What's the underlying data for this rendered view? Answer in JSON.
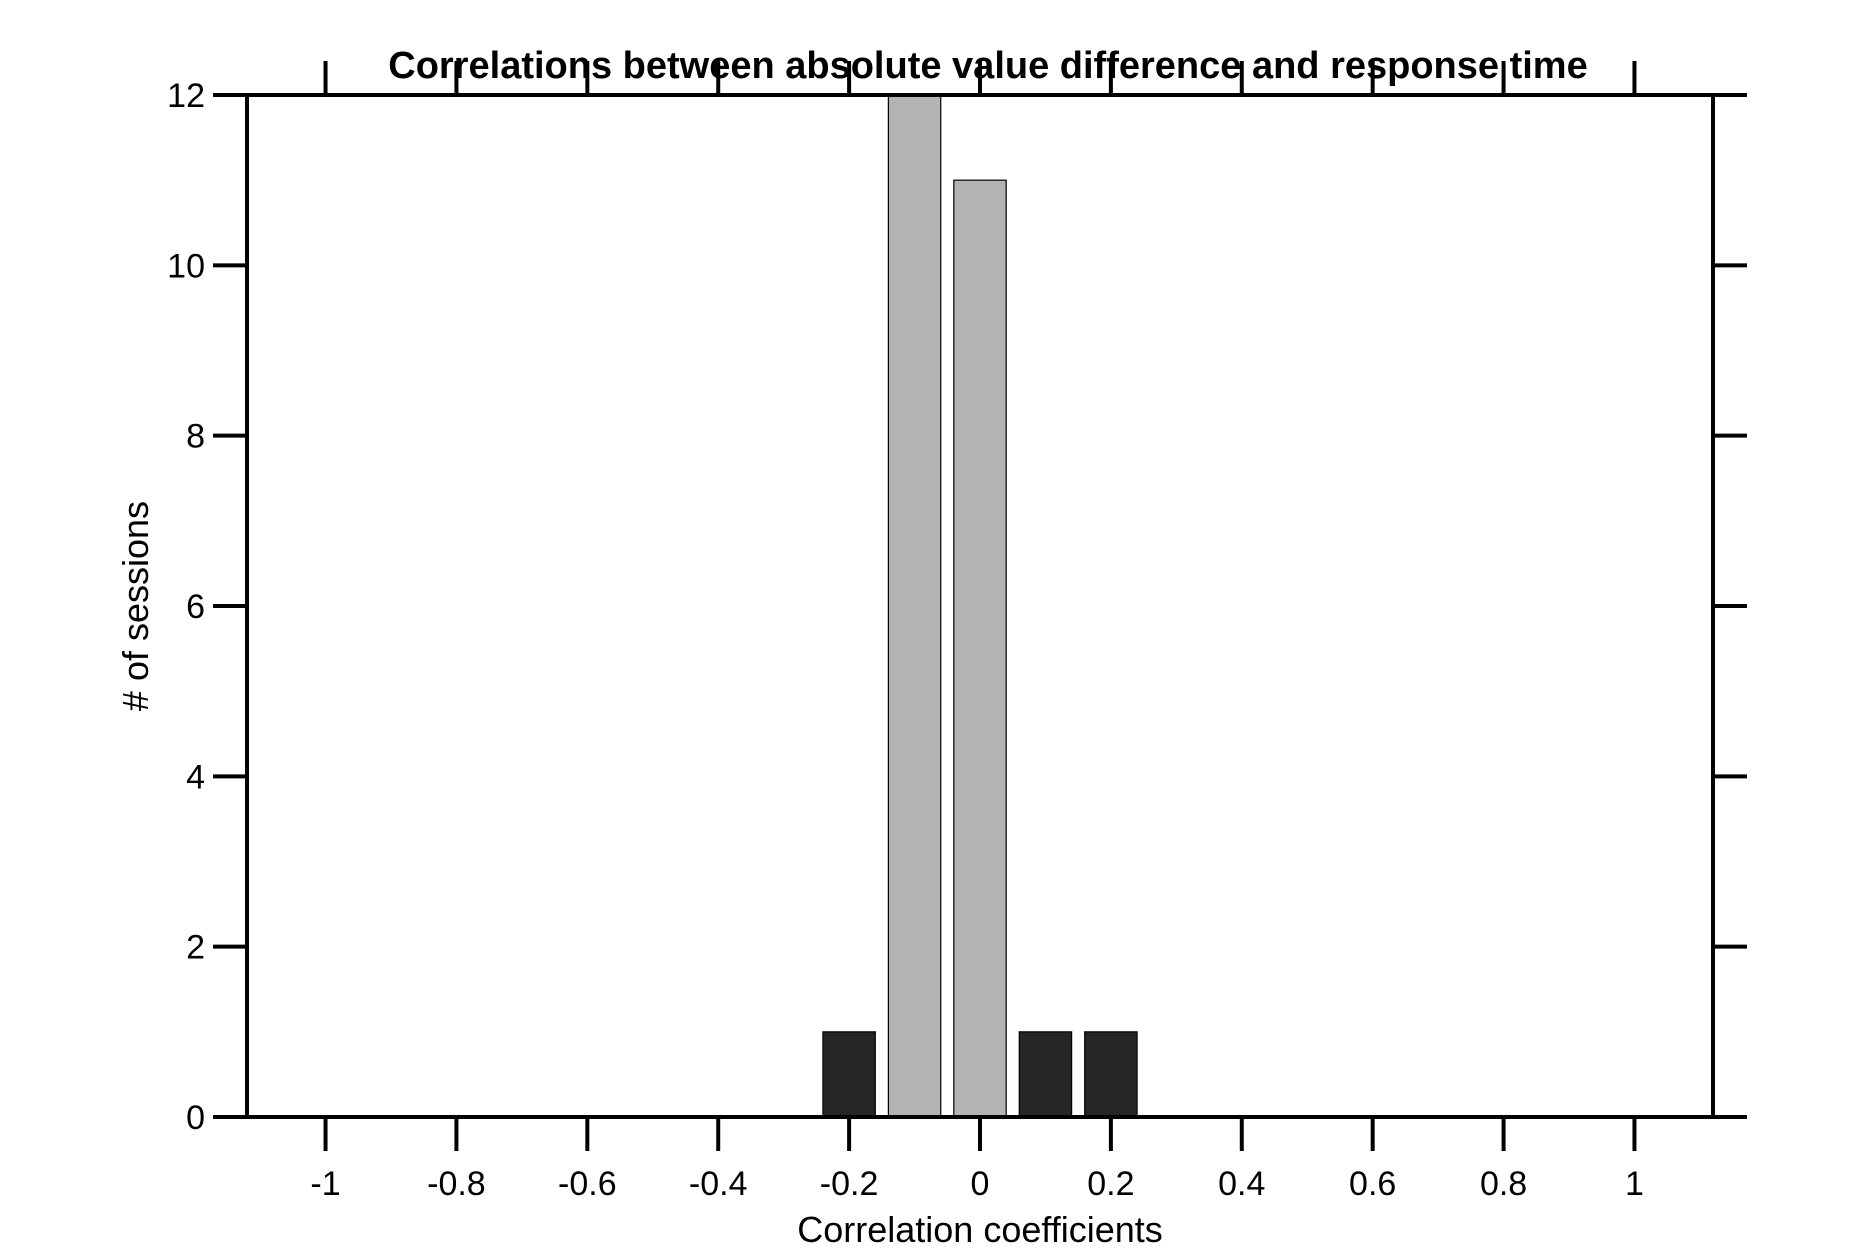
{
  "chart_data": {
    "type": "bar",
    "title": "Correlations between absolute value difference and response time",
    "xlabel": "Correlation coefficients",
    "ylabel": "# of sessions",
    "xlim": [
      -1.12,
      1.12
    ],
    "ylim": [
      0,
      12
    ],
    "x_ticks": [
      -1,
      -0.8,
      -0.6,
      -0.4,
      -0.2,
      0,
      0.2,
      0.4,
      0.6,
      0.8,
      1
    ],
    "x_tick_labels": [
      "-1",
      "-0.8",
      "-0.6",
      "-0.4",
      "-0.2",
      "0",
      "0.2",
      "0.4",
      "0.6",
      "0.8",
      "1"
    ],
    "y_ticks": [
      0,
      2,
      4,
      6,
      8,
      10,
      12
    ],
    "y_tick_labels": [
      "0",
      "2",
      "4",
      "6",
      "8",
      "10",
      "12"
    ],
    "grid": false,
    "bin_width": 0.1,
    "bars": [
      {
        "x": -0.2,
        "value": 1,
        "color": "#262626"
      },
      {
        "x": -0.1,
        "value": 12,
        "color": "#b3b3b3"
      },
      {
        "x": 0.0,
        "value": 11,
        "color": "#b3b3b3"
      },
      {
        "x": 0.1,
        "value": 1,
        "color": "#262626"
      },
      {
        "x": 0.2,
        "value": 1,
        "color": "#262626"
      }
    ]
  }
}
